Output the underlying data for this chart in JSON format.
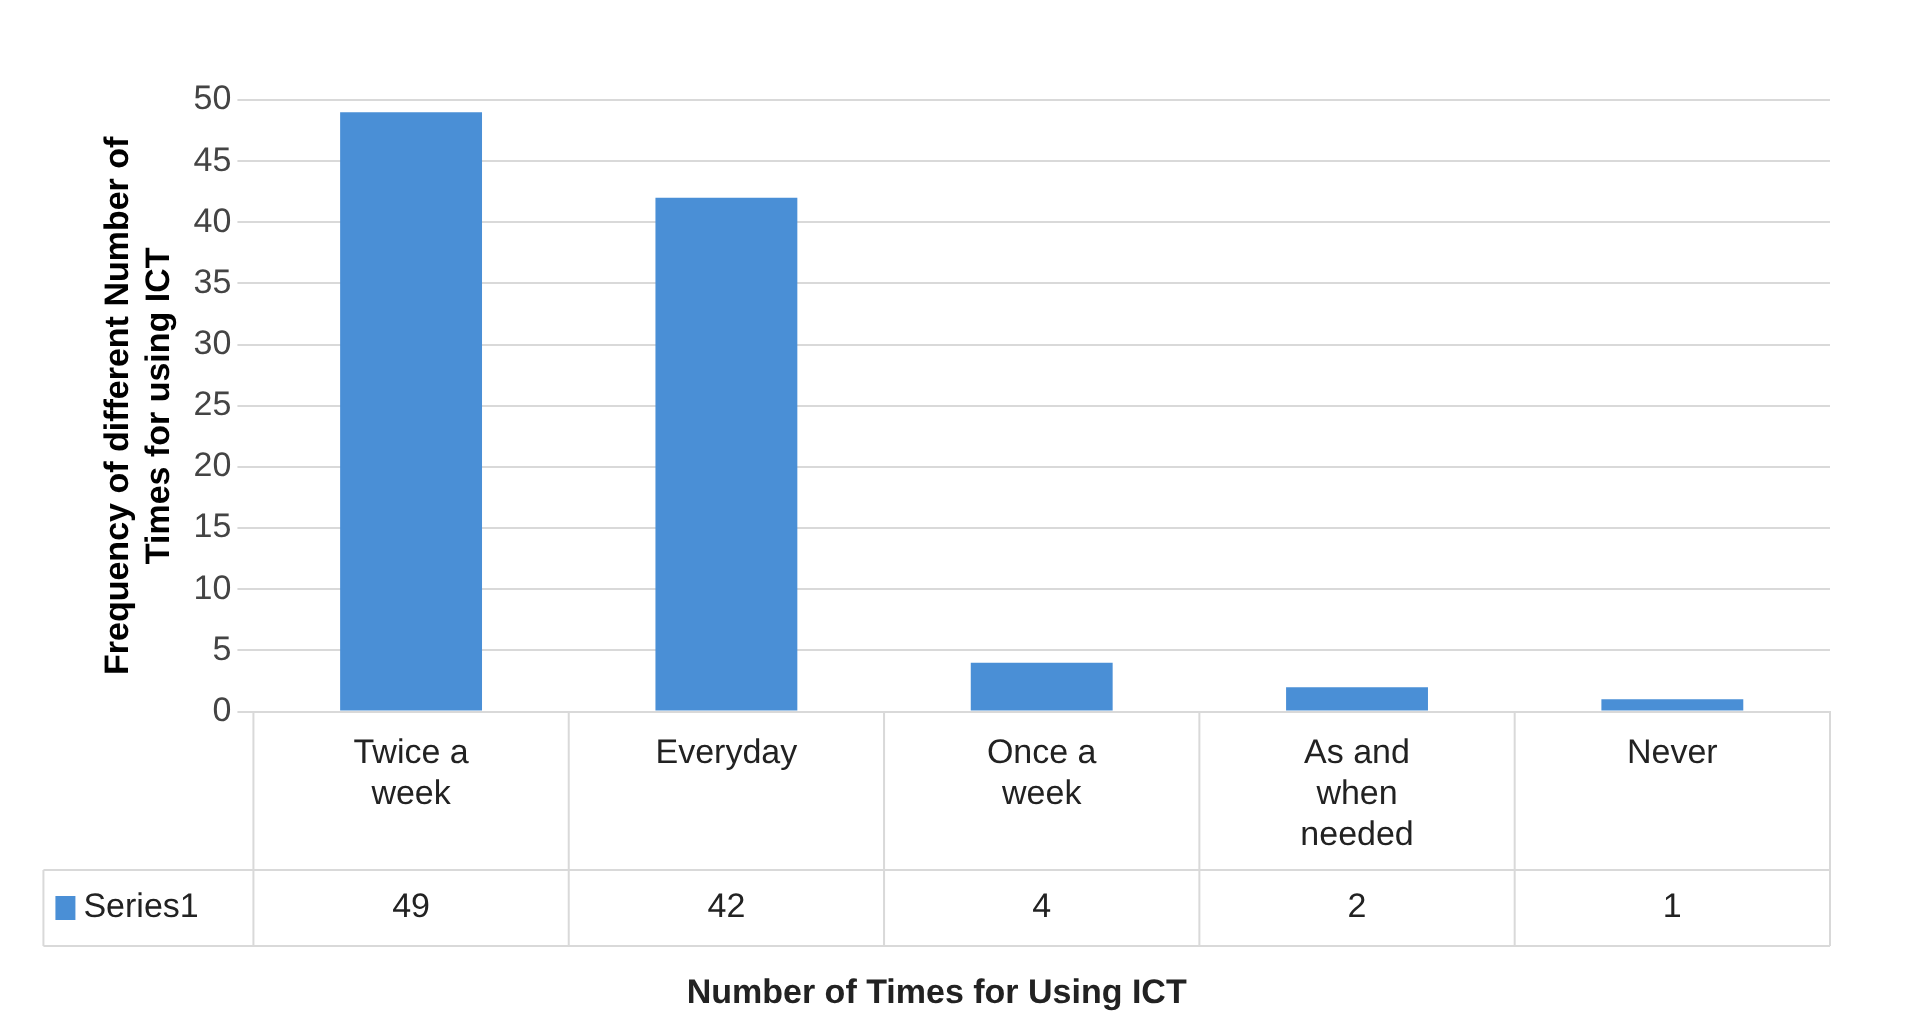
{
  "chart_data": {
    "type": "bar",
    "xlabel": "Number of Times for Using ICT",
    "ylabel": "Frequency of different Number of Times for using ICT",
    "categories": [
      "Twice a week",
      "Everyday",
      "Once a week",
      "As and when needed",
      "Never"
    ],
    "series": [
      {
        "name": "Series1",
        "color": "#4a8fd6",
        "values": [
          49,
          42,
          4,
          2,
          1
        ]
      }
    ],
    "ylim": [
      0,
      50
    ],
    "yticks": [
      0,
      5,
      10,
      15,
      20,
      25,
      30,
      35,
      40,
      45,
      50
    ],
    "grid": true,
    "data_labels": true,
    "legend": "bottom"
  }
}
